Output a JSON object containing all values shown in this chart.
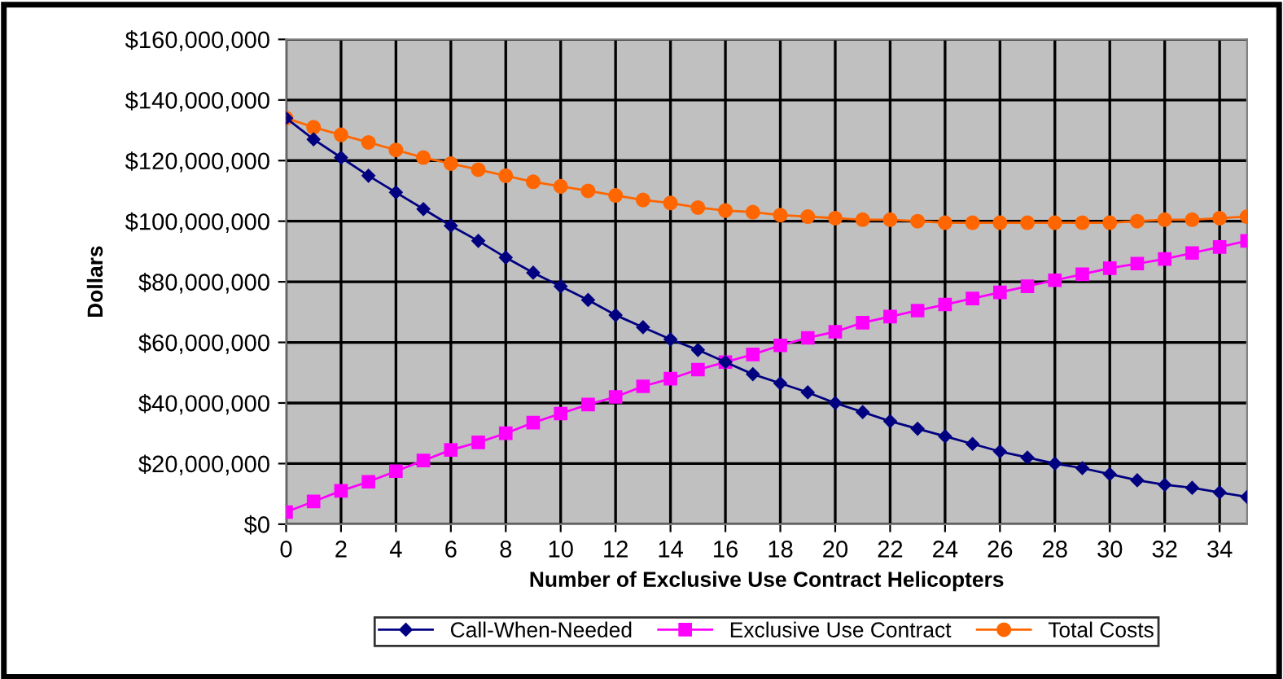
{
  "chart_data": {
    "type": "line",
    "xlabel": "Number of Exclusive Use Contract Helicopters",
    "ylabel": "Dollars",
    "x": [
      0,
      1,
      2,
      3,
      4,
      5,
      6,
      7,
      8,
      9,
      10,
      11,
      12,
      13,
      14,
      15,
      16,
      17,
      18,
      19,
      20,
      21,
      22,
      23,
      24,
      25,
      26,
      27,
      28,
      29,
      30,
      31,
      32,
      33,
      34,
      35
    ],
    "series": [
      {
        "name": "Call-When-Needed",
        "color": "#000080",
        "marker": "diamond",
        "values": [
          134000000,
          127000000,
          121000000,
          115000000,
          109500000,
          104000000,
          98500000,
          93500000,
          88000000,
          83000000,
          78500000,
          74000000,
          69000000,
          65000000,
          61000000,
          57500000,
          53500000,
          49500000,
          46500000,
          43500000,
          40000000,
          37000000,
          34000000,
          31500000,
          29000000,
          26500000,
          24000000,
          22000000,
          20000000,
          18500000,
          16500000,
          14500000,
          13000000,
          12000000,
          10500000,
          9000000
        ]
      },
      {
        "name": "Exclusive Use Contract",
        "color": "#ff00ff",
        "marker": "square",
        "values": [
          4000000,
          7500000,
          11000000,
          14000000,
          17500000,
          21000000,
          24500000,
          27000000,
          30000000,
          33500000,
          36500000,
          39500000,
          42000000,
          45500000,
          48000000,
          51000000,
          53500000,
          56000000,
          59000000,
          61500000,
          63500000,
          66500000,
          68500000,
          70500000,
          72500000,
          74500000,
          76500000,
          78500000,
          80500000,
          82500000,
          84500000,
          86000000,
          87500000,
          89500000,
          91500000,
          93500000
        ]
      },
      {
        "name": "Total Costs",
        "color": "#ff6600",
        "marker": "circle",
        "values": [
          134000000,
          131000000,
          128500000,
          126000000,
          123500000,
          121000000,
          119000000,
          117000000,
          115000000,
          113000000,
          111500000,
          110000000,
          108500000,
          107000000,
          106000000,
          104500000,
          103500000,
          103000000,
          102000000,
          101500000,
          101000000,
          100500000,
          100500000,
          100000000,
          99500000,
          99500000,
          99500000,
          99500000,
          99500000,
          99500000,
          99500000,
          100000000,
          100500000,
          100500000,
          101000000,
          101500000
        ]
      }
    ],
    "xlim": [
      0,
      35
    ],
    "xticks": [
      0,
      2,
      4,
      6,
      8,
      10,
      12,
      14,
      16,
      18,
      20,
      22,
      24,
      26,
      28,
      30,
      32,
      34
    ],
    "ylim": [
      0,
      160000000
    ],
    "yticks": [
      {
        "value": 0,
        "label": "$0"
      },
      {
        "value": 20000000,
        "label": "$20,000,000"
      },
      {
        "value": 40000000,
        "label": "$40,000,000"
      },
      {
        "value": 60000000,
        "label": "$60,000,000"
      },
      {
        "value": 80000000,
        "label": "$80,000,000"
      },
      {
        "value": 100000000,
        "label": "$100,000,000"
      },
      {
        "value": 120000000,
        "label": "$120,000,000"
      },
      {
        "value": 140000000,
        "label": "$140,000,000"
      },
      {
        "value": 160000000,
        "label": "$160,000,000"
      }
    ],
    "grid": true,
    "legend": "bottom",
    "line_style": "solid"
  }
}
